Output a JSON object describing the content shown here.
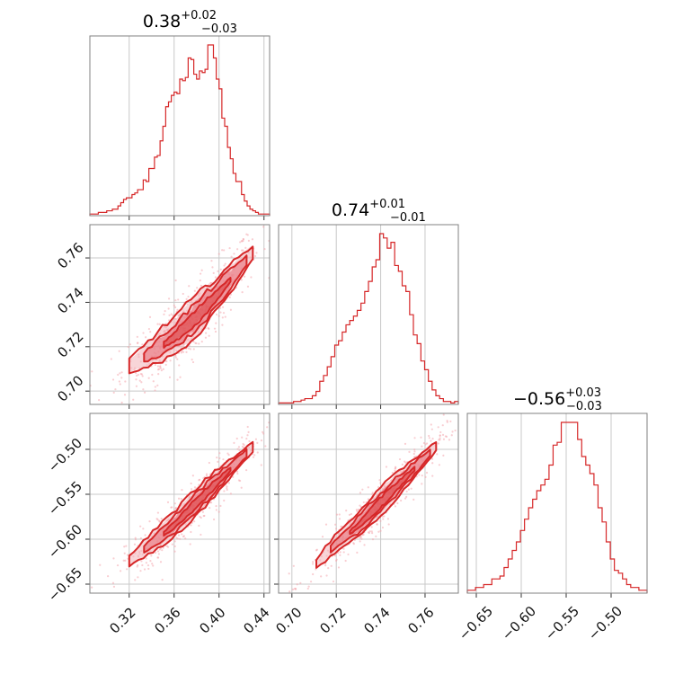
{
  "colors": {
    "accent": "#d62728",
    "light_fill": "#f2b3b8",
    "mid_fill": "#e8707a",
    "frame": "#808080",
    "grid": "#c8c8c8"
  },
  "chart_data": {
    "type": "corner",
    "parameters": [
      {
        "index": 0,
        "median": 0.38,
        "plus": "+0.02",
        "minus": "−0.03",
        "median_label": "0.38",
        "range": [
          0.285,
          0.445
        ]
      },
      {
        "index": 1,
        "median": 0.74,
        "plus": "+0.01",
        "minus": "−0.01",
        "median_label": "0.74",
        "range": [
          0.694,
          0.775
        ]
      },
      {
        "index": 2,
        "median": -0.56,
        "plus": "+0.03",
        "minus": "−0.03",
        "median_label": "−0.56",
        "range": [
          -0.66,
          -0.46
        ]
      }
    ],
    "ticks": {
      "p0": {
        "values": [
          0.32,
          0.36,
          0.4,
          0.44
        ],
        "labels": [
          "0.32",
          "0.36",
          "0.40",
          "0.44"
        ]
      },
      "p1": {
        "values": [
          0.7,
          0.72,
          0.74,
          0.76
        ],
        "labels": [
          "0.70",
          "0.72",
          "0.74",
          "0.76"
        ]
      },
      "p2": {
        "values": [
          -0.65,
          -0.6,
          -0.55,
          -0.5
        ],
        "labels": [
          "−0.65",
          "−0.60",
          "−0.55",
          "−0.50"
        ]
      }
    },
    "histograms": [
      {
        "param": 0,
        "edges_start": 0.285,
        "edges_end": 0.445,
        "counts": [
          1,
          1,
          1,
          2,
          2,
          2,
          3,
          3,
          4,
          4,
          6,
          8,
          10,
          11,
          11,
          13,
          14,
          16,
          16,
          22,
          21,
          29,
          29,
          36,
          37,
          46,
          55,
          67,
          70,
          74,
          76,
          75,
          84,
          83,
          85,
          97,
          96,
          87,
          84,
          89,
          88,
          90,
          105,
          105,
          97,
          84,
          78,
          60,
          55,
          42,
          35,
          26,
          21,
          21,
          13,
          9,
          6,
          4,
          3,
          2,
          1,
          1,
          1,
          1
        ]
      },
      {
        "param": 1,
        "edges_start": 0.694,
        "edges_end": 0.775,
        "counts": [
          1,
          1,
          1,
          1,
          2,
          2,
          3,
          4,
          4,
          6,
          9,
          16,
          20,
          26,
          33,
          41,
          44,
          50,
          55,
          58,
          61,
          65,
          70,
          78,
          85,
          95,
          100,
          118,
          115,
          108,
          112,
          96,
          92,
          82,
          78,
          62,
          48,
          42,
          30,
          24,
          16,
          10,
          6,
          4,
          2,
          2,
          1,
          2
        ]
      },
      {
        "param": 2,
        "edges_start": -0.66,
        "edges_end": -0.46,
        "counts": [
          1,
          1,
          2,
          2,
          3,
          3,
          5,
          5,
          6,
          9,
          12,
          15,
          18,
          22,
          26,
          30,
          33,
          36,
          38,
          40,
          45,
          52,
          53,
          60,
          60,
          60,
          60,
          54,
          48,
          45,
          42,
          38,
          30,
          25,
          18,
          12,
          8,
          7,
          5,
          3,
          2,
          2,
          1,
          1
        ]
      }
    ],
    "pairs": [
      {
        "x_param": 0,
        "y_param": 1,
        "ridge": [
          [
            0.32,
            0.711
          ],
          [
            0.34,
            0.717
          ],
          [
            0.36,
            0.724
          ],
          [
            0.38,
            0.733
          ],
          [
            0.4,
            0.744
          ],
          [
            0.42,
            0.756
          ],
          [
            0.43,
            0.762
          ]
        ],
        "width": 0.007
      },
      {
        "x_param": 0,
        "y_param": 2,
        "ridge": [
          [
            0.32,
            -0.625
          ],
          [
            0.34,
            -0.605
          ],
          [
            0.36,
            -0.585
          ],
          [
            0.38,
            -0.56
          ],
          [
            0.4,
            -0.535
          ],
          [
            0.42,
            -0.51
          ],
          [
            0.43,
            -0.498
          ]
        ],
        "width": 0.012
      },
      {
        "x_param": 1,
        "y_param": 2,
        "ridge": [
          [
            0.711,
            -0.628
          ],
          [
            0.72,
            -0.605
          ],
          [
            0.73,
            -0.585
          ],
          [
            0.74,
            -0.56
          ],
          [
            0.75,
            -0.535
          ],
          [
            0.76,
            -0.51
          ],
          [
            0.765,
            -0.497
          ]
        ],
        "width": 0.012
      }
    ]
  }
}
